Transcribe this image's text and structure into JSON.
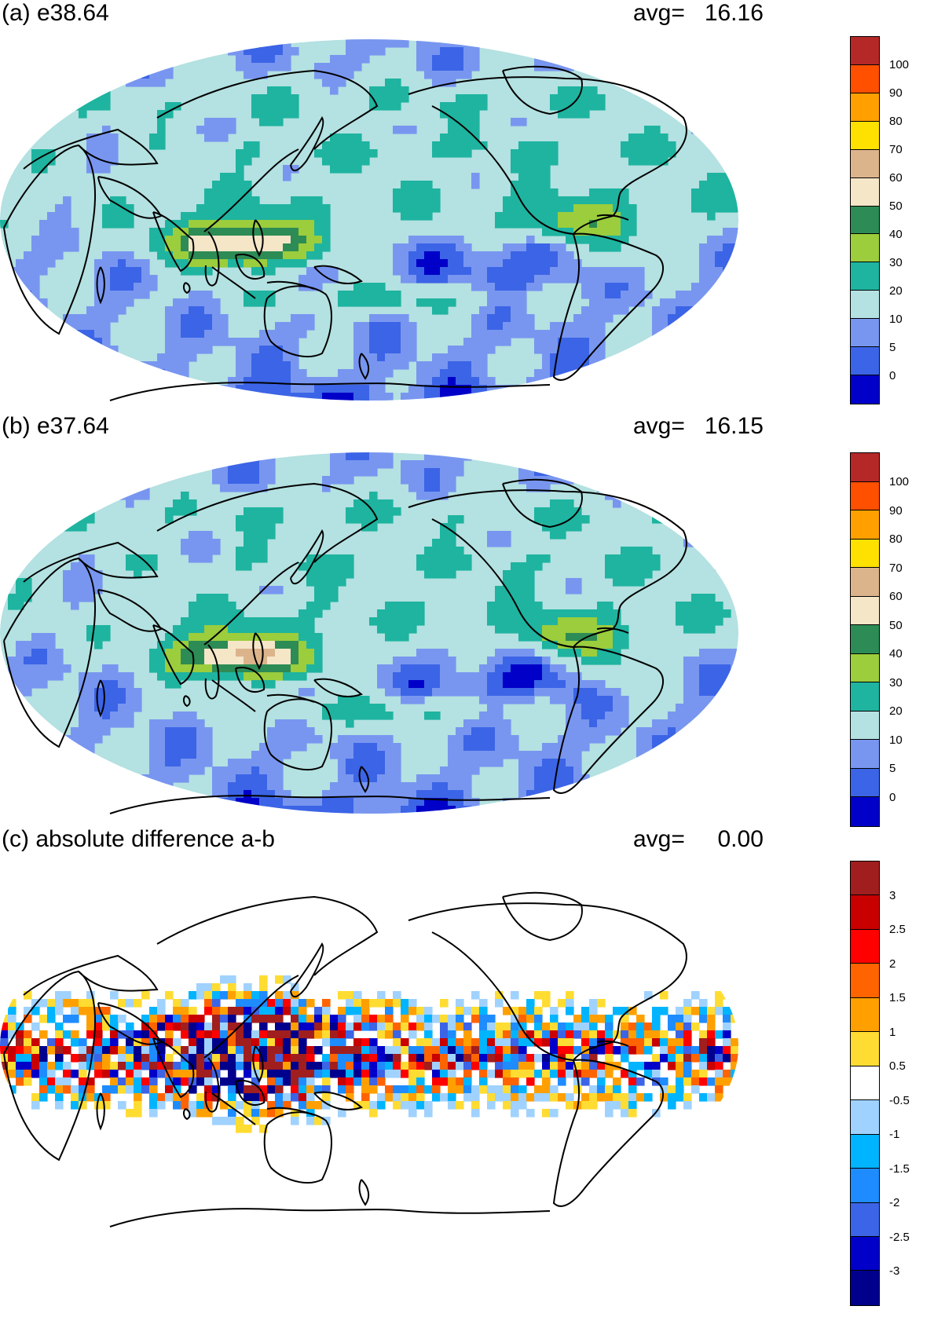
{
  "panels": [
    {
      "title": "(a) e38.64",
      "avg_label": "avg=",
      "avg_value": "16.16",
      "field": "precip",
      "colorbar": {
        "colors": [
          "#0000c8",
          "#3c64e6",
          "#7896f0",
          "#b4e1e1",
          "#1eb4a0",
          "#9bcd3c",
          "#2d8c55",
          "#f5e6c8",
          "#dcb48c",
          "#ffe100",
          "#ffa000",
          "#ff5000",
          "#b42828"
        ],
        "labels": [
          "0",
          "5",
          "10",
          "20",
          "30",
          "40",
          "50",
          "60",
          "70",
          "80",
          "90",
          "100"
        ]
      }
    },
    {
      "title": "(b) e37.64",
      "avg_label": "avg=",
      "avg_value": "16.15",
      "field": "precip",
      "colorbar": {
        "colors": [
          "#0000c8",
          "#3c64e6",
          "#7896f0",
          "#b4e1e1",
          "#1eb4a0",
          "#9bcd3c",
          "#2d8c55",
          "#f5e6c8",
          "#dcb48c",
          "#ffe100",
          "#ffa000",
          "#ff5000",
          "#b42828"
        ],
        "labels": [
          "0",
          "5",
          "10",
          "20",
          "30",
          "40",
          "50",
          "60",
          "70",
          "80",
          "90",
          "100"
        ]
      }
    },
    {
      "title": "(c) absolute difference a-b",
      "avg_label": "avg=",
      "avg_value": "0.00",
      "field": "diff",
      "colorbar": {
        "colors": [
          "#00008c",
          "#0000c8",
          "#3c64e6",
          "#1e8cff",
          "#00b4ff",
          "#a0d2ff",
          "#ffffff",
          "#ffdc32",
          "#ffa000",
          "#ff6400",
          "#ff0000",
          "#c80000",
          "#a01e1e"
        ],
        "labels": [
          "-3",
          "-2.5",
          "-2",
          "-1.5",
          "-1",
          "-0.5",
          "0.5",
          "1",
          "1.5",
          "2",
          "2.5",
          "3"
        ]
      }
    }
  ]
}
